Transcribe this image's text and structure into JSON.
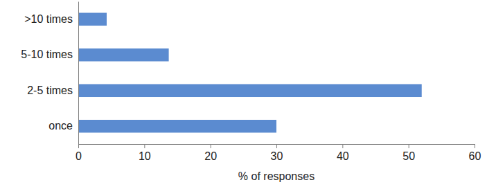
{
  "chart_data": {
    "type": "bar",
    "orientation": "horizontal",
    "x_label": "% of responses",
    "categories": [
      "once",
      "2-5 times",
      "5-10 times",
      ">10 times"
    ],
    "values": [
      30,
      52,
      13.7,
      4.3
    ],
    "color": "#5b8bd0",
    "xlim": [
      0,
      60
    ],
    "xticks": [
      0,
      10,
      20,
      30,
      40,
      50,
      60
    ],
    "grid": false
  }
}
